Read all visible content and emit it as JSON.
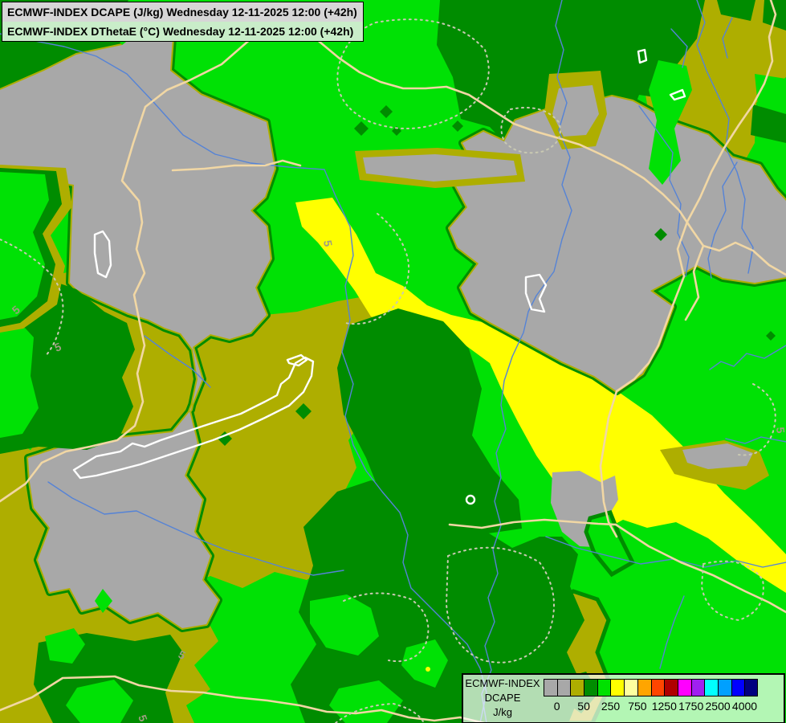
{
  "title": {
    "line1": "ECMWF-INDEX DCAPE (J/kg) Wednesday 12-11-2025 12:00 (+42h)",
    "line2": "ECMWF-INDEX DThetaE (°C) Wednesday 12-11-2025 12:00 (+42h)"
  },
  "legend": {
    "heading_line1": "ECMWF-INDEX",
    "heading_line2": "DCAPE",
    "units": "J/kg",
    "swatches": [
      "#a8a8a8",
      "#a8a8a8",
      "#aeae00",
      "#008c00",
      "#00e100",
      "#ffff00",
      "#ffffa0",
      "#ffa500",
      "#ff4500",
      "#b00000",
      "#ff00ff",
      "#a020f0",
      "#00ffff",
      "#00a0ff",
      "#0000ff",
      "#000080"
    ],
    "tick_labels": [
      "0",
      "50",
      "250",
      "750",
      "1250",
      "1750",
      "2500",
      "4000"
    ]
  },
  "map": {
    "contour_label": "5",
    "palette": {
      "bright_green": "#00e105",
      "dark_green": "#008c00",
      "olive": "#aeae00",
      "gray": "#a8a8a8",
      "yellow": "#ffff00",
      "border_tan": "#f1d7a4",
      "river_blue": "#5583d6",
      "lake_white": "#ffffff",
      "contour_dots": "#c9c9b2"
    }
  }
}
